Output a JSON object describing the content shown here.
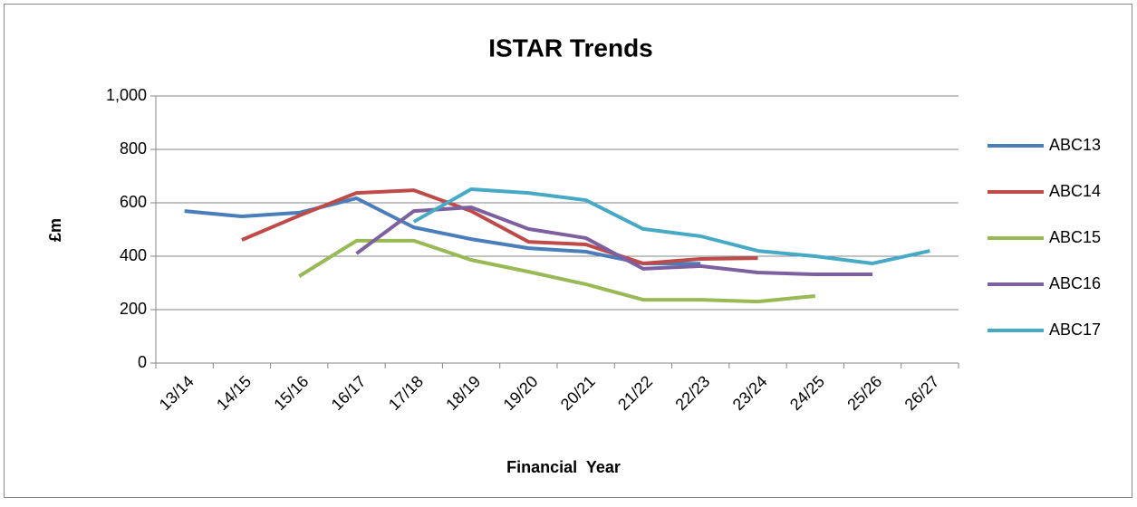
{
  "chart_data": {
    "type": "line",
    "title": "ISTAR Trends",
    "x_label": "Financial  Year",
    "y_label": "£m",
    "categories": [
      "13/14",
      "14/15",
      "15/16",
      "16/17",
      "17/18",
      "18/19",
      "19/20",
      "20/21",
      "21/22",
      "22/23",
      "23/24",
      "24/25",
      "25/26",
      "26/27"
    ],
    "series": [
      {
        "name": "ABC13",
        "color": "#4a7ebb",
        "values": [
          569,
          549,
          563,
          617,
          508,
          464,
          430,
          417,
          373,
          372,
          null,
          null,
          null,
          null
        ]
      },
      {
        "name": "ABC14",
        "color": "#be4b48",
        "values": [
          null,
          461,
          552,
          637,
          647,
          569,
          454,
          444,
          373,
          390,
          393,
          null,
          null,
          null
        ]
      },
      {
        "name": "ABC15",
        "color": "#98b954",
        "values": [
          null,
          null,
          325,
          458,
          458,
          386,
          342,
          295,
          237,
          237,
          230,
          251,
          null,
          null
        ]
      },
      {
        "name": "ABC16",
        "color": "#7d60a0",
        "values": [
          null,
          null,
          null,
          410,
          569,
          583,
          502,
          468,
          353,
          363,
          339,
          332,
          332,
          null
        ]
      },
      {
        "name": "ABC17",
        "color": "#46aac5",
        "values": [
          null,
          null,
          null,
          null,
          529,
          651,
          637,
          610,
          502,
          475,
          420,
          400,
          373,
          420
        ]
      }
    ],
    "ylim": [
      0,
      1000
    ],
    "yticks": [
      0,
      200,
      400,
      600,
      800,
      {
        "value": 1000,
        "label": "1,000"
      }
    ],
    "grid": true,
    "legend": "right"
  }
}
